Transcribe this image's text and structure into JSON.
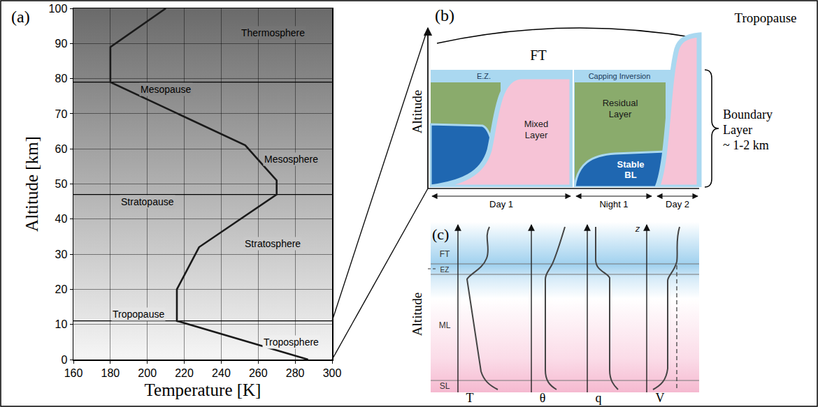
{
  "chart_data": {
    "type": "line",
    "panel_label": "(a)",
    "x": [
      287,
      216,
      216,
      228,
      270,
      270,
      253,
      180,
      180,
      210
    ],
    "values": [
      0,
      11,
      20,
      32,
      47,
      51,
      61,
      79,
      89,
      100
    ],
    "color": "#1a1a1a",
    "xlabel": "Temperature [K]",
    "ylabel": "Altitude [km]",
    "xlim": [
      160,
      300
    ],
    "xticks": [
      160,
      180,
      200,
      220,
      240,
      260,
      280,
      300
    ],
    "ylim": [
      0,
      100
    ],
    "yticks": [
      0,
      10,
      20,
      30,
      40,
      50,
      60,
      70,
      80,
      90,
      100
    ],
    "grid": true,
    "hlines": [
      11,
      47,
      79
    ],
    "annotations": [
      {
        "text": "Thermosphere",
        "x": 268,
        "y": 93
      },
      {
        "text": "Mesopause",
        "x": 210,
        "y": 79
      },
      {
        "text": "Mesosphere",
        "x": 278,
        "y": 57
      },
      {
        "text": "Stratopause",
        "x": 200,
        "y": 47
      },
      {
        "text": "Stratosphere",
        "x": 268,
        "y": 33
      },
      {
        "text": "Tropopause",
        "x": 195,
        "y": 11
      },
      {
        "text": "Troposphere",
        "x": 278,
        "y": 5
      }
    ]
  },
  "panel_b": {
    "label": "(b)",
    "top_label": "Tropopause",
    "free_troposphere": "FT",
    "y_axis": "Altitude",
    "entrainment_zone": "E.Z.",
    "capping_inversion": "Capping Inversion",
    "mixed_layer": "Mixed Layer",
    "residual_layer": "Residual Layer",
    "stable_bl": "Stable BL",
    "periods": [
      "Day 1",
      "Night 1",
      "Day 2"
    ],
    "bracket_label": [
      "Boundary Layer",
      "~ 1-2 km"
    ]
  },
  "panel_c": {
    "label": "(c)",
    "layers": [
      "FT",
      "EZ",
      "ML",
      "SL"
    ],
    "z_label": "z",
    "variables": [
      "T",
      "θ",
      "q",
      "V"
    ],
    "y_axis": "Altitude"
  }
}
